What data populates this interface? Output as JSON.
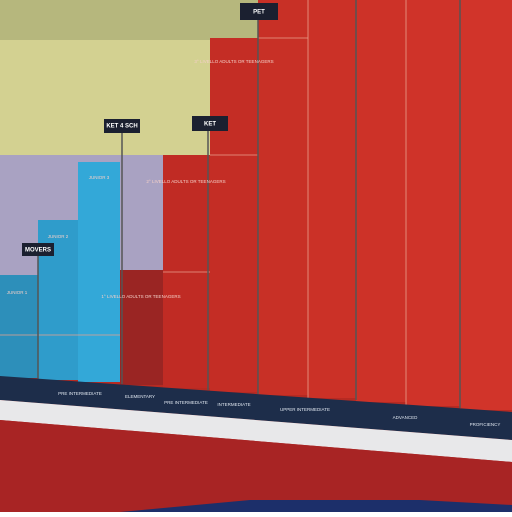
{
  "poster": {
    "tags": [
      "MOVERS",
      "KET 4 SCH",
      "KET",
      "PET"
    ],
    "bar_texts": [
      "JUNIOR 1",
      "JUNIOR 2",
      "JUNIOR 3",
      "1° LIVELLO ADULTS OR TEENAGERS",
      "2° LIVELLO ADULTS OR TEENAGERS",
      "3° LIVELLO ADULTS OR TEENAGERS"
    ],
    "levels": [
      "PRE INTERMEDIATE",
      "ELEMENTARY",
      "PRE INTERMEDIATE",
      "INTERMEDIATE",
      "UPPER INTERMEDIATE",
      "ADVANCED",
      "PROFICIENCY"
    ]
  }
}
